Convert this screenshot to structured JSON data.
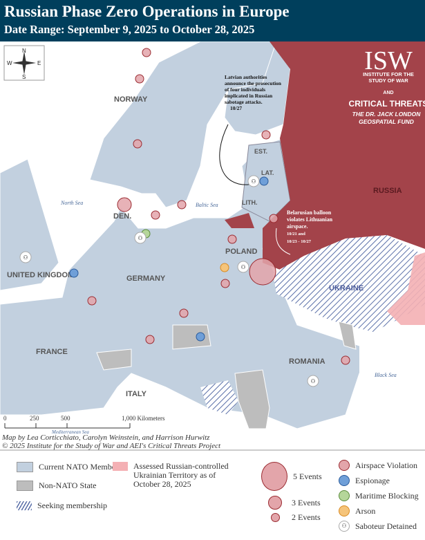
{
  "header": {
    "title": "Russian Phase Zero Operations in Europe",
    "subtitle": "Date Range: September 9, 2025 to October 28, 2025"
  },
  "compass": {
    "n": "N",
    "s": "S",
    "e": "E",
    "w": "W"
  },
  "logo": {
    "isw": "ISW",
    "isw_sub": "INSTITUTE FOR THE STUDY OF WAR",
    "and": "AND",
    "ct": "CRITICAL THREATS",
    "fund": "THE DR. JACK LONDON GEOSPATIAL FUND"
  },
  "labels": {
    "norway": "NORWAY",
    "den": "DEN.",
    "germany": "GERMANY",
    "uk": "UNITED KINGDOM",
    "france": "FRANCE",
    "italy": "ITALY",
    "poland": "POLAND",
    "romania": "ROMANIA",
    "ukraine": "UKRAINE",
    "russia": "RUSSIA",
    "est": "EST.",
    "lat": "LAT.",
    "lith": "LITH.",
    "north_sea": "North Sea",
    "baltic_sea": "Baltic Sea",
    "med_sea": "Mediterranean Sea",
    "black_sea": "Black Sea"
  },
  "annotations": {
    "latvia": {
      "text": "Latvian authorities announce the prosecution of four individuals implicated in Russian sabotage attacks.",
      "date": "10/27"
    },
    "belarus": {
      "text": "Belarusian balloon violates Lithuanian airspace.",
      "date1": "10/21 and",
      "date2": "10/23 - 10/27"
    }
  },
  "scale": {
    "ticks": [
      "0",
      "250",
      "500",
      "1,000 Kilometers"
    ]
  },
  "credits": [
    "Map by Lea Corticchiato, Carolyn Weinstein, and Harrison Hurwitz",
    "© 2025 Institute for the Study of War and AEI's Critical Threats Project"
  ],
  "colors": {
    "nato": "#c2d0df",
    "non_nato": "#bdbdbd",
    "russia": "#a3434a",
    "occupied": "#f4b0b4",
    "airspace": "#e3a5aa",
    "espionage": "#6f9fd8",
    "maritime": "#b5d69a",
    "arson": "#f5c47a",
    "header": "#003f5c"
  },
  "legend": {
    "nato": "Current NATO Member",
    "non_nato": "Non-NATO State",
    "seeking": "Seeking membership",
    "occupied": "Assessed Russian-controlled Ukrainian Territory as of October 28, 2025",
    "sizes": [
      "5 Events",
      "3 Events",
      "2 Events"
    ],
    "types": [
      "Airspace Violation",
      "Espionage",
      "Maritime Blocking",
      "Arson",
      "Saboteur Detained"
    ]
  },
  "events": [
    {
      "type": "airspace",
      "size": 1,
      "place": "Norway north"
    },
    {
      "type": "airspace",
      "size": 1,
      "place": "Norway"
    },
    {
      "type": "airspace",
      "size": 1,
      "place": "Norway"
    },
    {
      "type": "airspace",
      "size": 3,
      "place": "Denmark"
    },
    {
      "type": "airspace",
      "size": 1,
      "place": "Denmark"
    },
    {
      "type": "airspace",
      "size": 1,
      "place": "Sweden south"
    },
    {
      "type": "airspace",
      "size": 1,
      "place": "Belgium"
    },
    {
      "type": "airspace",
      "size": 1,
      "place": "Germany"
    },
    {
      "type": "airspace",
      "size": 1,
      "place": "Czechia"
    },
    {
      "type": "airspace",
      "size": 1,
      "place": "Estonia"
    },
    {
      "type": "airspace",
      "size": 1,
      "place": "Lithuania"
    },
    {
      "type": "airspace",
      "size": 1,
      "place": "Poland"
    },
    {
      "type": "airspace",
      "size": 1,
      "place": "Poland south"
    },
    {
      "type": "airspace",
      "size": 5,
      "place": "Poland east"
    },
    {
      "type": "airspace",
      "size": 1,
      "place": "Romania"
    },
    {
      "type": "espionage",
      "size": 1,
      "place": "Latvia"
    },
    {
      "type": "espionage",
      "size": 1,
      "place": "Netherlands"
    },
    {
      "type": "espionage",
      "size": 1,
      "place": "Austria"
    },
    {
      "type": "maritime",
      "size": 1,
      "place": "Denmark"
    },
    {
      "type": "arson",
      "size": 1,
      "place": "Poland"
    },
    {
      "type": "saboteur",
      "size": 1,
      "place": "UK"
    },
    {
      "type": "saboteur",
      "size": 1,
      "place": "Latvia"
    },
    {
      "type": "saboteur",
      "size": 1,
      "place": "Poland"
    },
    {
      "type": "saboteur",
      "size": 1,
      "place": "Germany north"
    },
    {
      "type": "saboteur",
      "size": 1,
      "place": "Romania"
    }
  ]
}
